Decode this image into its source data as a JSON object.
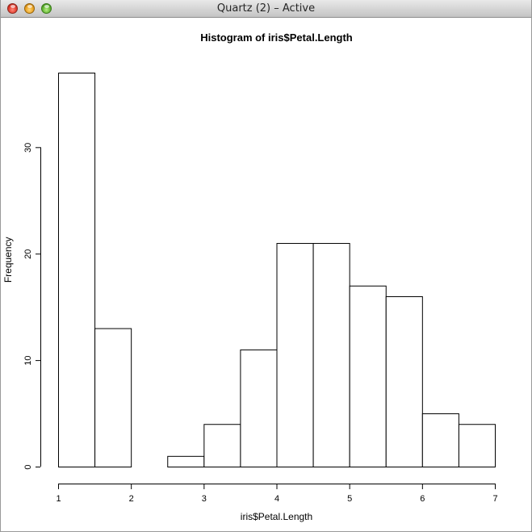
{
  "window": {
    "title": "Quartz (2) – Active"
  },
  "chart_data": {
    "type": "bar",
    "title": "Histogram of iris$Petal.Length",
    "xlabel": "iris$Petal.Length",
    "ylabel": "Frequency",
    "bins": [
      [
        1,
        1.5
      ],
      [
        1.5,
        2
      ],
      [
        2,
        2.5
      ],
      [
        2.5,
        3
      ],
      [
        3,
        3.5
      ],
      [
        3.5,
        4
      ],
      [
        4,
        4.5
      ],
      [
        4.5,
        5
      ],
      [
        5,
        5.5
      ],
      [
        5.5,
        6
      ],
      [
        6,
        6.5
      ],
      [
        6.5,
        7
      ]
    ],
    "values": [
      37,
      13,
      0,
      1,
      4,
      11,
      21,
      21,
      17,
      16,
      5,
      4
    ],
    "xlim": [
      1,
      7
    ],
    "ylim": [
      0,
      37
    ],
    "x_ticks": [
      "1",
      "2",
      "3",
      "4",
      "5",
      "6",
      "7"
    ],
    "y_ticks": [
      "0",
      "10",
      "20",
      "30"
    ],
    "grid": false,
    "colors": {
      "bar_fill": "#ffffff",
      "bar_stroke": "#000000"
    }
  }
}
